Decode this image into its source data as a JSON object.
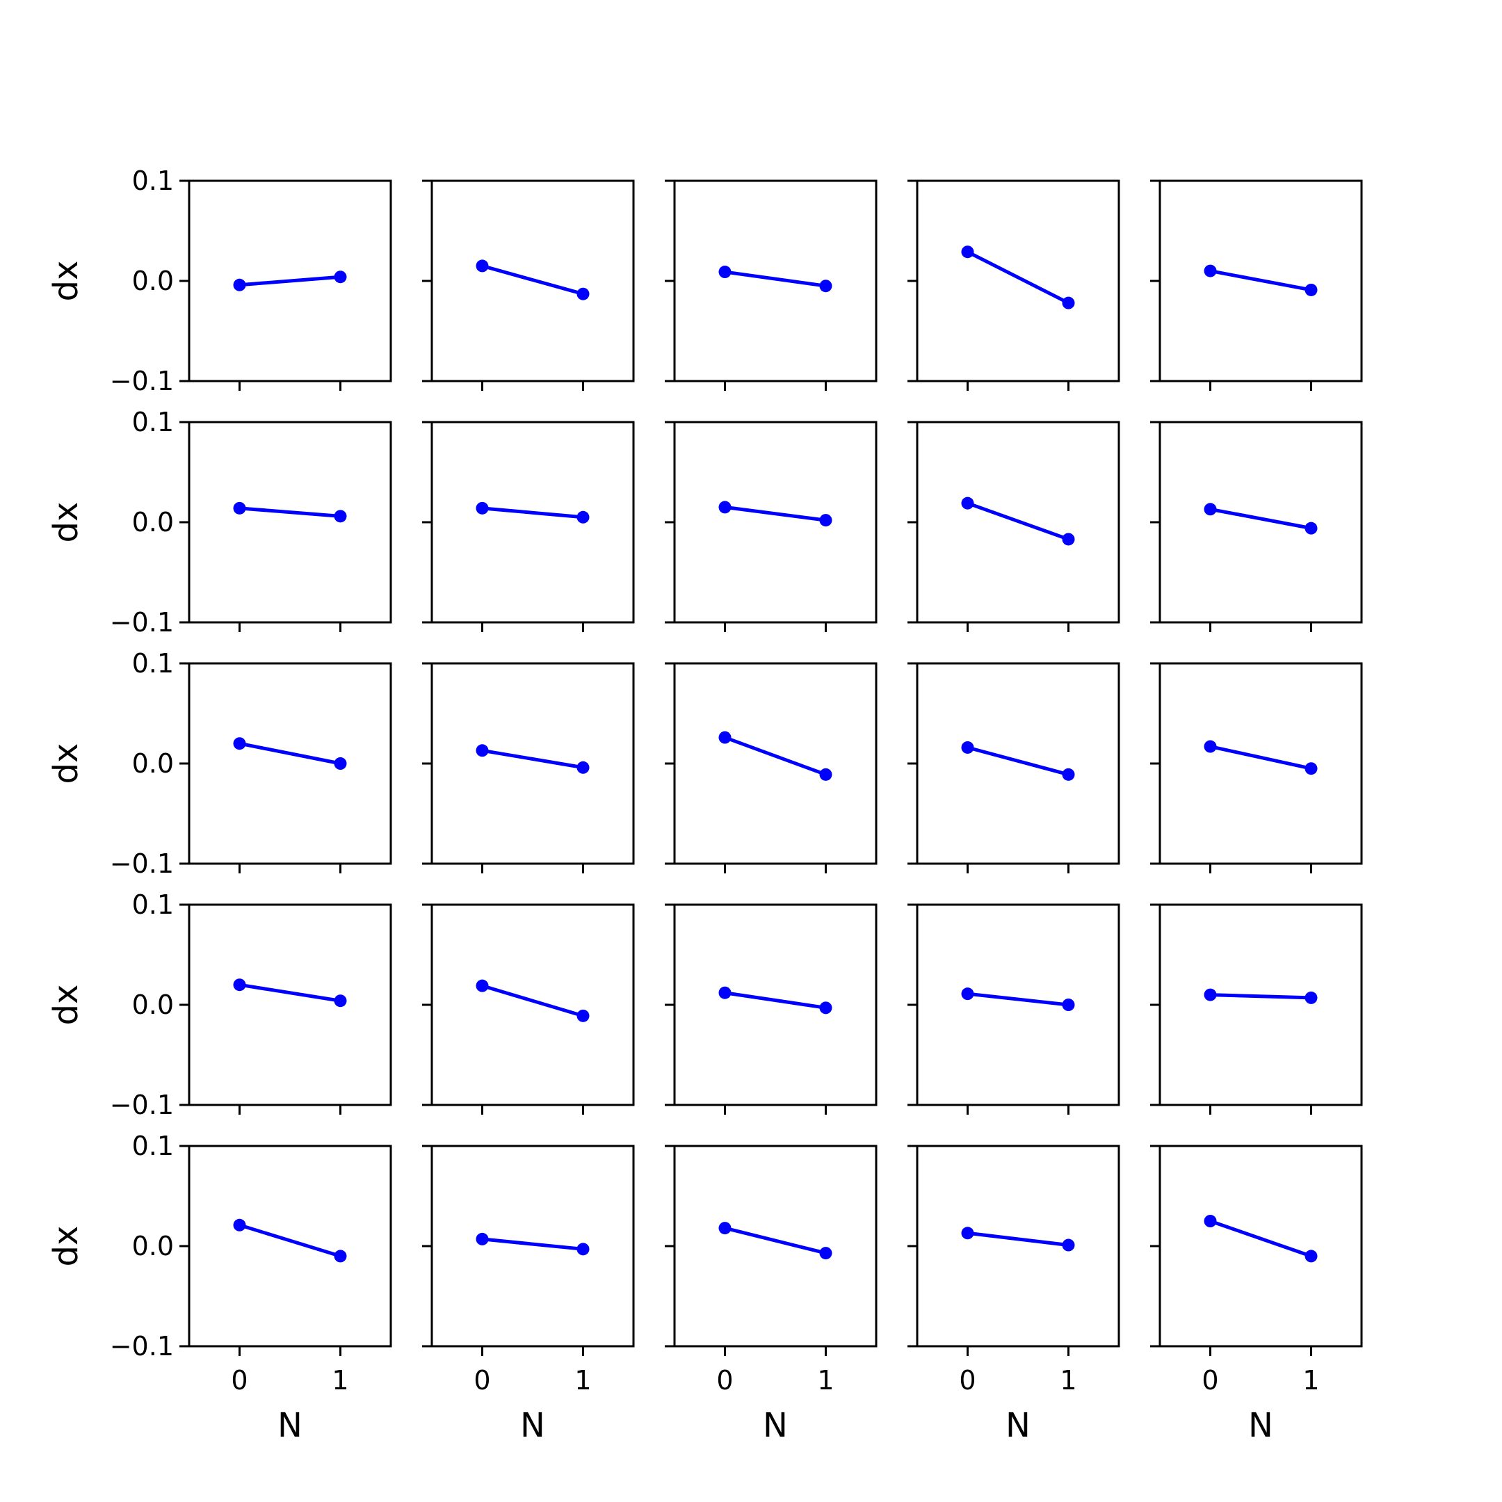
{
  "chart_data": {
    "type": "line",
    "layout": {
      "rows": 5,
      "cols": 5,
      "sharex": true,
      "sharey": true
    },
    "xlabel": "N",
    "ylabel": "dx",
    "xlim": [
      -0.5,
      1.5
    ],
    "ylim": [
      -0.1,
      0.1
    ],
    "xticks": [
      0,
      1
    ],
    "xtick_labels": [
      "0",
      "1"
    ],
    "yticks": [
      -0.1,
      0.0,
      0.1
    ],
    "ytick_labels": [
      "−0.1",
      "0.0",
      "0.1"
    ],
    "grid": false,
    "color": "#0000ff",
    "marker": "o",
    "x": [
      0,
      1
    ],
    "panels": [
      {
        "y": [
          -0.004,
          0.004
        ]
      },
      {
        "y": [
          0.015,
          -0.013
        ]
      },
      {
        "y": [
          0.009,
          -0.005
        ]
      },
      {
        "y": [
          0.029,
          -0.022
        ]
      },
      {
        "y": [
          0.01,
          -0.009
        ]
      },
      {
        "y": [
          0.014,
          0.006
        ]
      },
      {
        "y": [
          0.014,
          0.005
        ]
      },
      {
        "y": [
          0.015,
          0.002
        ]
      },
      {
        "y": [
          0.019,
          -0.017
        ]
      },
      {
        "y": [
          0.013,
          -0.006
        ]
      },
      {
        "y": [
          0.02,
          0.0
        ]
      },
      {
        "y": [
          0.013,
          -0.004
        ]
      },
      {
        "y": [
          0.026,
          -0.011
        ]
      },
      {
        "y": [
          0.016,
          -0.011
        ]
      },
      {
        "y": [
          0.017,
          -0.005
        ]
      },
      {
        "y": [
          0.02,
          0.004
        ]
      },
      {
        "y": [
          0.019,
          -0.011
        ]
      },
      {
        "y": [
          0.012,
          -0.003
        ]
      },
      {
        "y": [
          0.011,
          0.0
        ]
      },
      {
        "y": [
          0.01,
          0.007
        ]
      },
      {
        "y": [
          0.021,
          -0.01
        ]
      },
      {
        "y": [
          0.007,
          -0.003
        ]
      },
      {
        "y": [
          0.018,
          -0.007
        ]
      },
      {
        "y": [
          0.013,
          0.001
        ]
      },
      {
        "y": [
          0.025,
          -0.01
        ]
      }
    ]
  }
}
